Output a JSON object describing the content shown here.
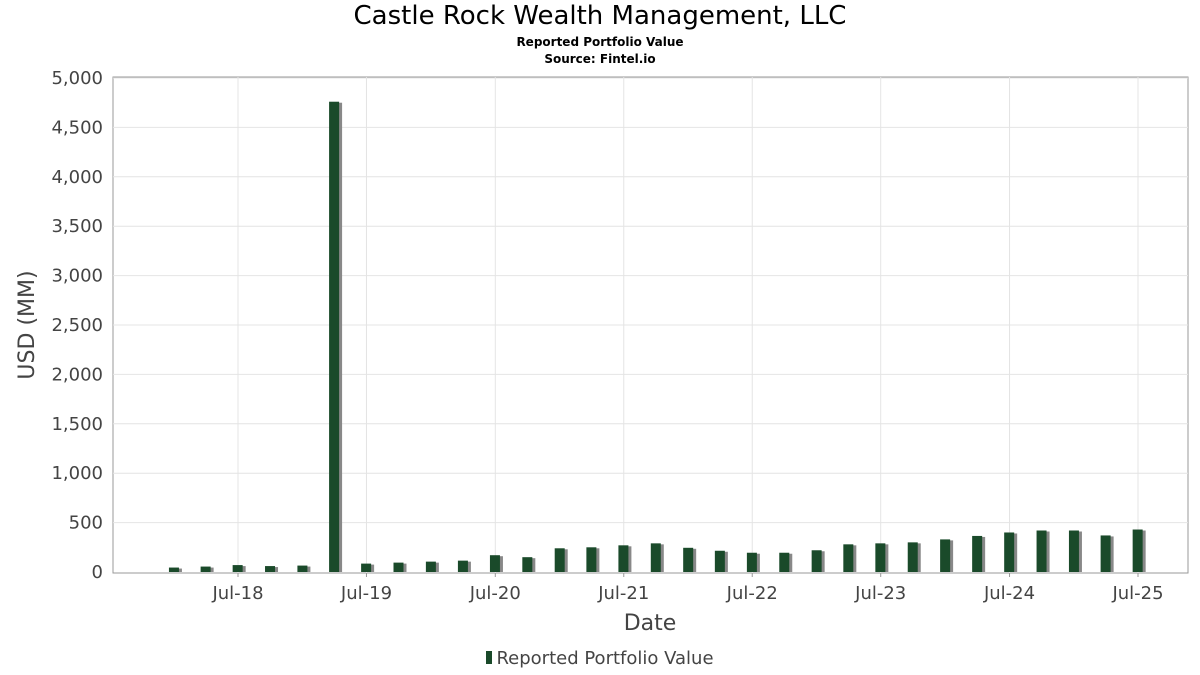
{
  "chart_data": {
    "type": "bar",
    "title": "Castle Rock Wealth Management, LLC",
    "subtitle": "Reported Portfolio Value",
    "source": "Source: Fintel.io",
    "xlabel": "Date",
    "ylabel": "USD (MM)",
    "ylim": [
      0,
      5000
    ],
    "y_ticks": [
      "0",
      "500",
      "1,000",
      "1,500",
      "2,000",
      "2,500",
      "3,000",
      "3,500",
      "4,000",
      "4,500",
      "5,000"
    ],
    "x_ticks": [
      "Jul-18",
      "Jul-19",
      "Jul-20",
      "Jul-21",
      "Jul-22",
      "Jul-23",
      "Jul-24",
      "Jul-25"
    ],
    "grid": true,
    "legend_position": "bottom",
    "bar_color": "#1a4a2a",
    "shadow_color": "#888888",
    "series": [
      {
        "name": "Reported Portfolio Value",
        "x": [
          "2017-12-31",
          "2018-03-31",
          "2018-06-30",
          "2018-09-30",
          "2018-12-31",
          "2019-03-31",
          "2019-06-30",
          "2019-09-30",
          "2019-12-31",
          "2020-03-31",
          "2020-06-30",
          "2020-09-30",
          "2020-12-31",
          "2021-03-31",
          "2021-06-30",
          "2021-09-30",
          "2021-12-31",
          "2022-03-31",
          "2022-06-30",
          "2022-09-30",
          "2022-12-31",
          "2023-03-31",
          "2023-06-30",
          "2023-09-30",
          "2023-12-31",
          "2024-03-31",
          "2024-06-30",
          "2024-09-30",
          "2024-12-31",
          "2025-03-31",
          "2025-06-30"
        ],
        "values": [
          45,
          55,
          70,
          60,
          65,
          4760,
          85,
          95,
          105,
          115,
          170,
          150,
          240,
          250,
          270,
          290,
          245,
          215,
          195,
          195,
          220,
          280,
          290,
          300,
          330,
          365,
          400,
          420,
          420,
          370,
          430
        ]
      }
    ]
  }
}
